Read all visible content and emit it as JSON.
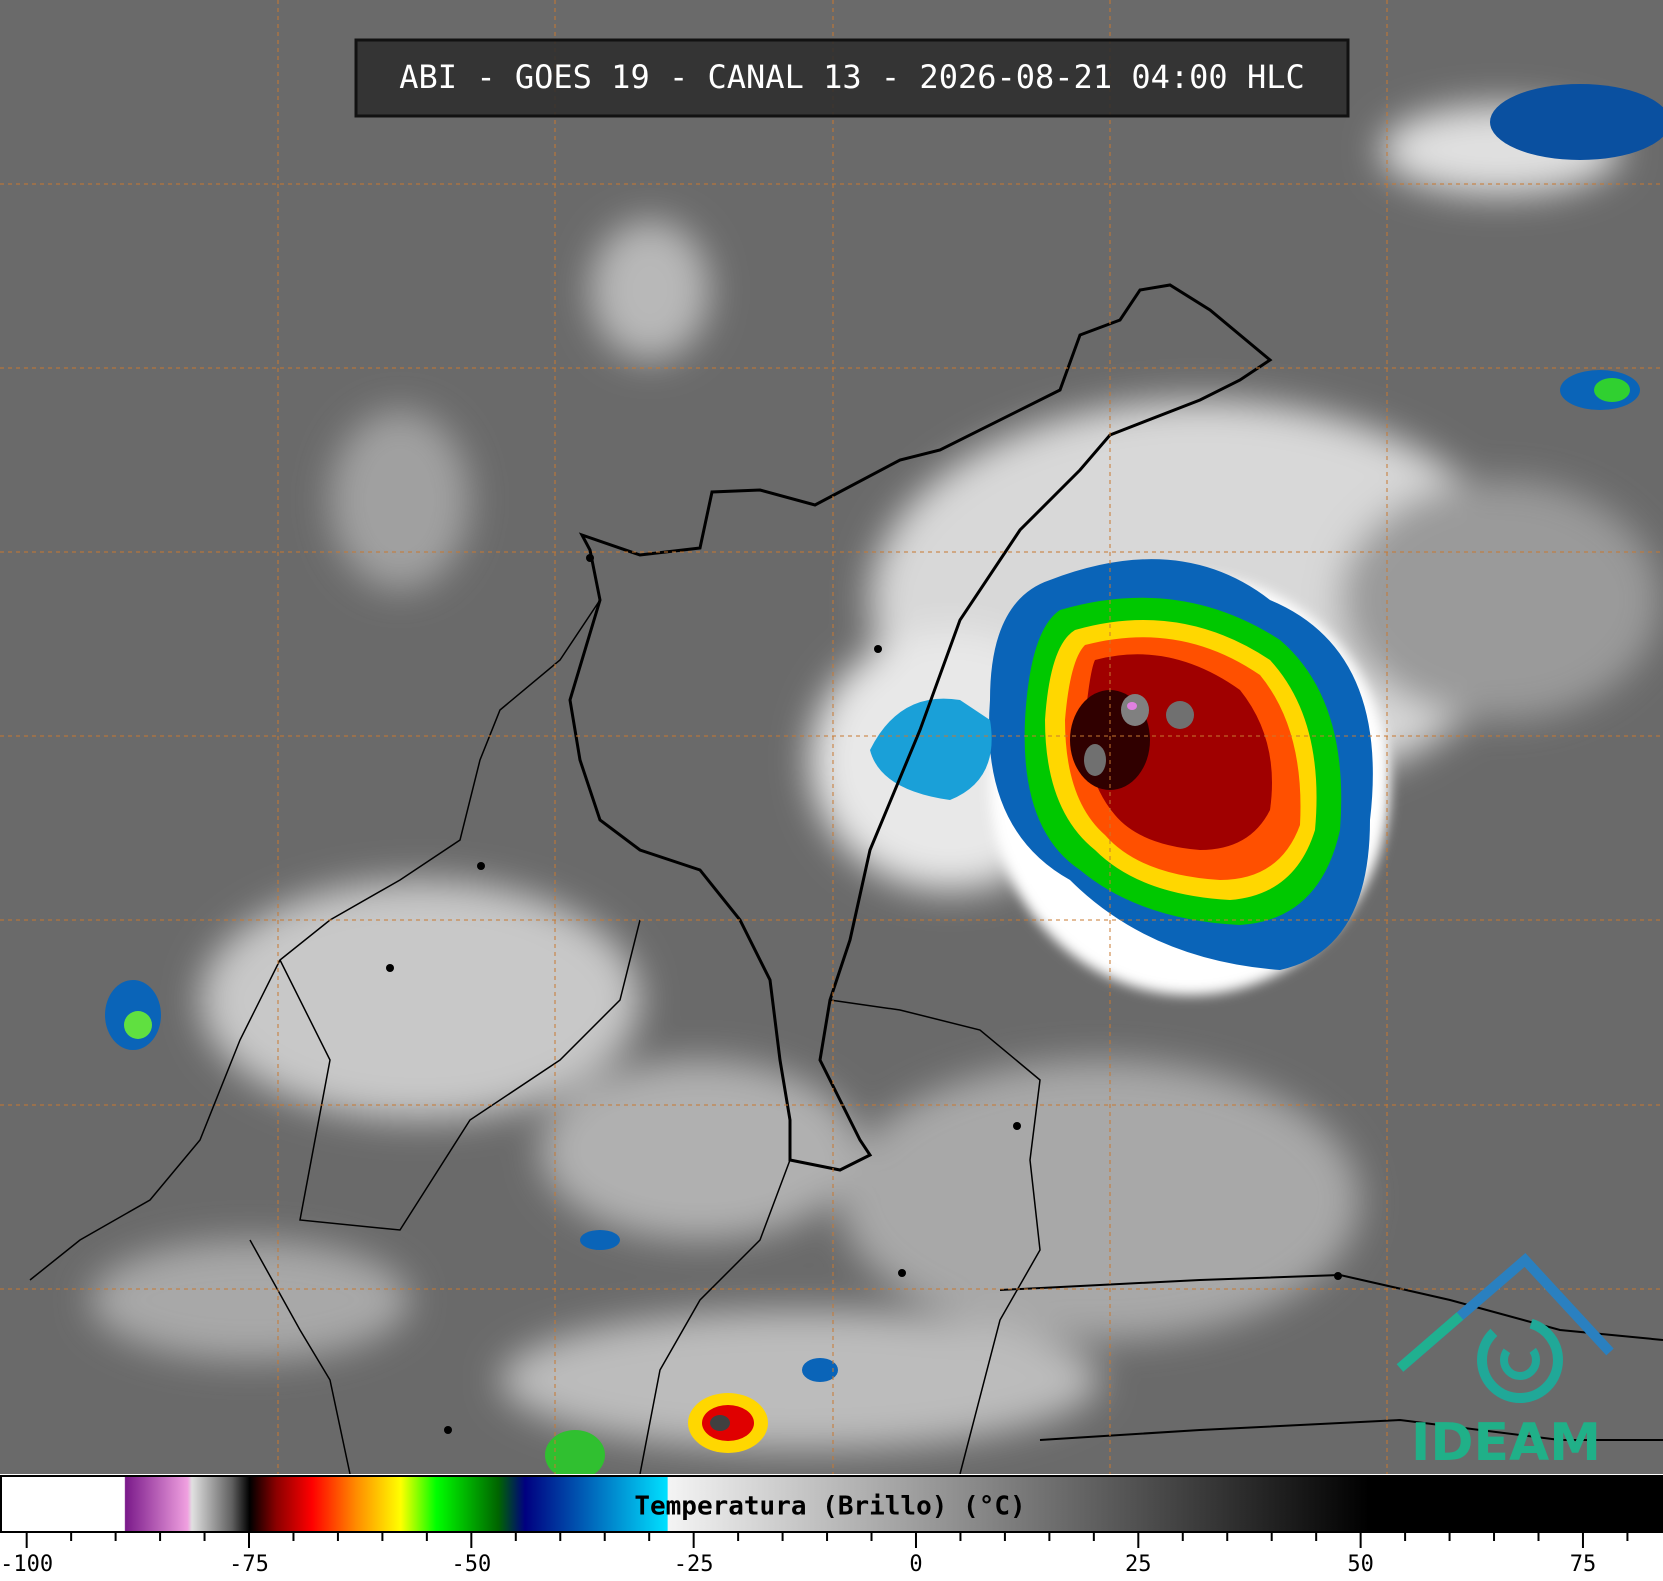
{
  "title": "ABI - GOES 19 - CANAL 13 - 2026-08-21 04:00 HLC",
  "logo": "IDEAM",
  "colorbar": {
    "label": "Temperatura (Brillo) (°C)",
    "range": [
      -103,
      84
    ],
    "ticks": [
      -100,
      -75,
      -50,
      -25,
      0,
      25,
      50,
      75
    ],
    "minor_ticks": [
      -95,
      -90,
      -85,
      -80,
      -70,
      -65,
      -60,
      -55,
      -45,
      -40,
      -35,
      -30,
      -20,
      -15,
      -10,
      -5,
      5,
      10,
      15,
      20,
      30,
      35,
      40,
      45,
      55,
      60,
      65,
      70,
      80
    ],
    "color_stops": [
      {
        "value": -103,
        "color": "#ffffff"
      },
      {
        "value": -89.1,
        "color": "#ffffff"
      },
      {
        "value": -89,
        "color": "#7a1a8a"
      },
      {
        "value": -82,
        "color": "#f0a0e0"
      },
      {
        "value": -81.5,
        "color": "#e0e0e0"
      },
      {
        "value": -77,
        "color": "#606060"
      },
      {
        "value": -75,
        "color": "#000000"
      },
      {
        "value": -72,
        "color": "#8b0000"
      },
      {
        "value": -68,
        "color": "#ff0000"
      },
      {
        "value": -63,
        "color": "#ff8c00"
      },
      {
        "value": -58,
        "color": "#ffff00"
      },
      {
        "value": -54,
        "color": "#00ff00"
      },
      {
        "value": -47,
        "color": "#006400"
      },
      {
        "value": -44,
        "color": "#000080"
      },
      {
        "value": -36,
        "color": "#0070c0"
      },
      {
        "value": -28,
        "color": "#00e0ff"
      },
      {
        "value": -27.9,
        "color": "#f4f4f4"
      },
      {
        "value": 51,
        "color": "#000000"
      },
      {
        "value": 84,
        "color": "#000000"
      }
    ]
  }
}
